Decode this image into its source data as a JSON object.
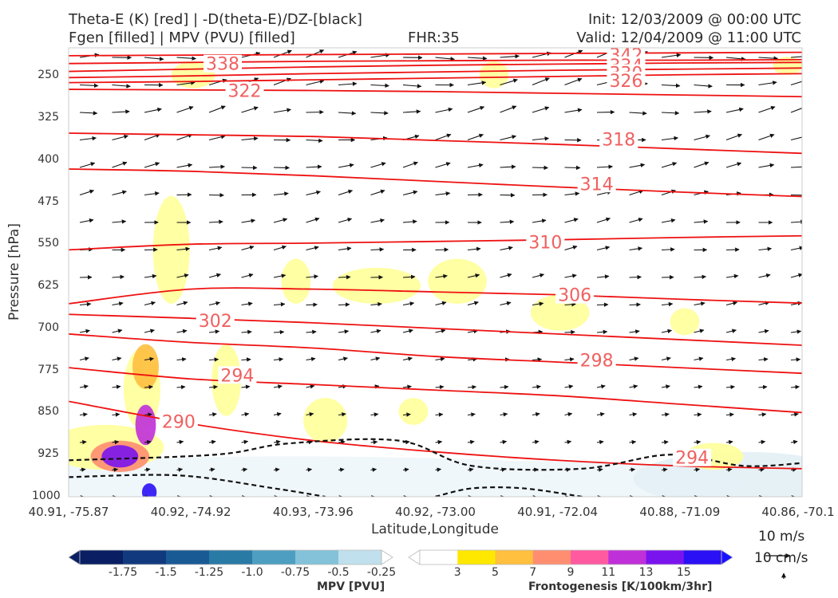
{
  "header": {
    "line1_left": "Theta-E (K) [red] | -D(theta-E)/DZ-[black]",
    "line2_left": "Fgen [filled] | MPV (PVU) [filled]",
    "fhr": "FHR:35",
    "init": "Init: 12/03/2009 @ 00:00 UTC",
    "valid": "Valid: 12/04/2009 @ 11:00 UTC"
  },
  "chart_data": {
    "type": "cross-section",
    "xlabel": "Latitude,Longitude",
    "ylabel": "Pressure [hPa]",
    "x_ticks": [
      "40.91, -75.87",
      "40.92, -74.92",
      "40.93, -73.96",
      "40.92, -73.00",
      "40.91, -72.04",
      "40.88, -71.09",
      "40.86, -70.1"
    ],
    "y_ticks": [
      "250",
      "325",
      "400",
      "475",
      "550",
      "625",
      "700",
      "775",
      "850",
      "925",
      "1000"
    ],
    "ylim": [
      200,
      1000
    ],
    "theta_e_contours": [
      {
        "label": "342",
        "p": [
          214,
          213,
          212,
          211,
          210,
          209,
          208
        ]
      },
      {
        "label": "338",
        "p": [
          228,
          226,
          224,
          223,
          222,
          222,
          221
        ]
      },
      {
        "label": "334",
        "p": [
          242,
          238,
          234,
          231,
          229,
          227,
          226
        ]
      },
      {
        "label": "330",
        "p": [
          253,
          250,
          246,
          243,
          240,
          238,
          236
        ]
      },
      {
        "label": "326",
        "p": [
          262,
          260,
          257,
          254,
          251,
          248,
          246
        ]
      },
      {
        "label": "322",
        "p": [
          274,
          275,
          276,
          278,
          281,
          284,
          287
        ]
      },
      {
        "label": "318",
        "p": [
          352,
          355,
          358,
          365,
          372,
          380,
          388
        ]
      },
      {
        "label": "314",
        "p": [
          416,
          420,
          428,
          438,
          448,
          457,
          465
        ]
      },
      {
        "label": "310",
        "p": [
          560,
          550,
          548,
          545,
          542,
          538,
          535
        ]
      },
      {
        "label": "306",
        "p": [
          656,
          630,
          630,
          635,
          640,
          648,
          655
        ]
      },
      {
        "label": "302",
        "p": [
          675,
          682,
          690,
          700,
          710,
          720,
          730
        ]
      },
      {
        "label": "298",
        "p": [
          710,
          725,
          735,
          750,
          760,
          770,
          780
        ]
      },
      {
        "label": "294",
        "p": [
          770,
          790,
          800,
          810,
          820,
          835,
          850
        ]
      },
      {
        "label": "290",
        "p": [
          830,
          870,
          900,
          920,
          935,
          945,
          950
        ]
      }
    ],
    "isoline_labels": [
      {
        "text": "342",
        "x": 0.76,
        "p": 212
      },
      {
        "text": "338",
        "x": 0.21,
        "p": 228
      },
      {
        "text": "334",
        "x": 0.76,
        "p": 231
      },
      {
        "text": "330",
        "x": 0.76,
        "p": 245
      },
      {
        "text": "326",
        "x": 0.76,
        "p": 258
      },
      {
        "text": "322",
        "x": 0.24,
        "p": 276
      },
      {
        "text": "318",
        "x": 0.75,
        "p": 363
      },
      {
        "text": "314",
        "x": 0.72,
        "p": 442
      },
      {
        "text": "310",
        "x": 0.65,
        "p": 546
      },
      {
        "text": "306",
        "x": 0.69,
        "p": 640
      },
      {
        "text": "302",
        "x": 0.2,
        "p": 686
      },
      {
        "text": "298",
        "x": 0.72,
        "p": 756
      },
      {
        "text": "294",
        "x": 0.23,
        "p": 783
      },
      {
        "text": "290",
        "x": 0.15,
        "p": 866
      },
      {
        "text": "294",
        "x": 0.85,
        "p": 930
      }
    ],
    "colorbars": [
      {
        "title": "MPV [PVU]",
        "ticks": [
          "-1.75",
          "-1.5",
          "-1.25",
          "-1.0",
          "-0.75",
          "-0.5",
          "-0.25"
        ],
        "colors": [
          "#0a1f63",
          "#113a7e",
          "#1a5a94",
          "#2a7aa6",
          "#4e9ec1",
          "#83c2d9",
          "#bfe0ec",
          "#ffffff"
        ]
      },
      {
        "title": "Frontogenesis [K/100km/3hr]",
        "ticks": [
          "3",
          "5",
          "7",
          "9",
          "11",
          "13",
          "15"
        ],
        "colors": [
          "#ffffff",
          "#ffe800",
          "#ffbf3f",
          "#ff8e70",
          "#ff5aa0",
          "#c030d8",
          "#7a14ee",
          "#2a10f5",
          "#1a12ff"
        ]
      }
    ],
    "wind_scale": {
      "u": "10 m/s",
      "w": "10 cm/s"
    }
  }
}
